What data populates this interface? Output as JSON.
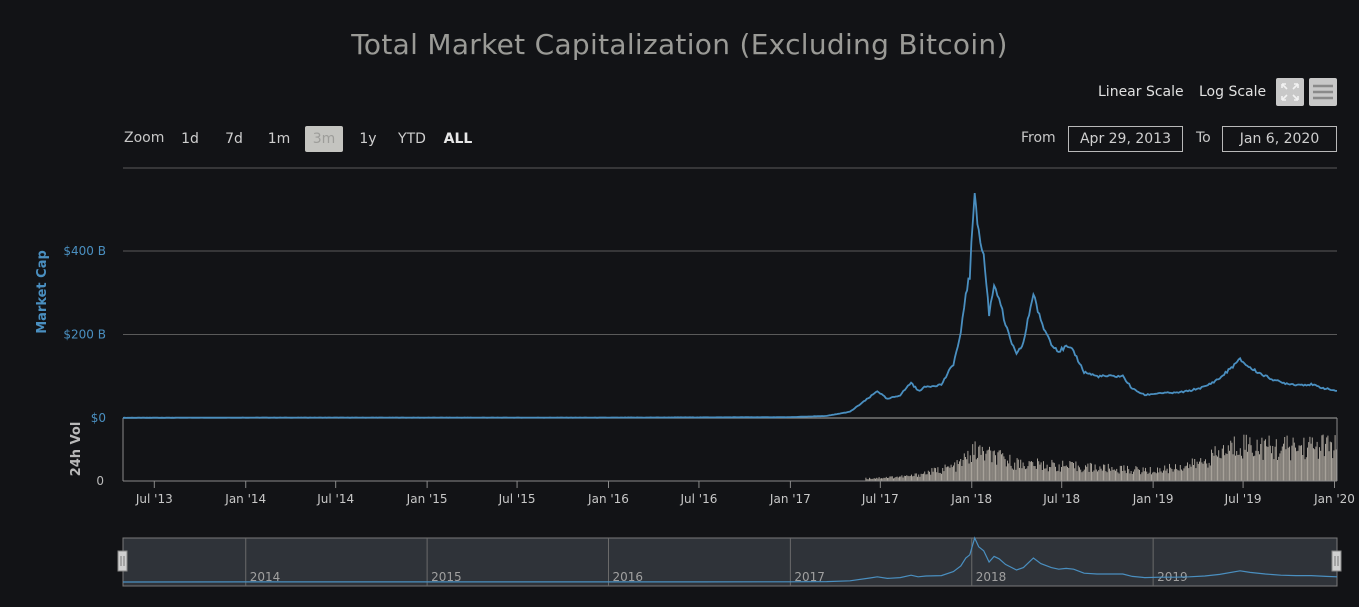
{
  "chart_data": {
    "type": "line",
    "title": "Total Market Capitalization (Excluding Bitcoin)",
    "ylabel": "Market Cap",
    "volume_label": "24h Vol",
    "ylim": [
      0,
      600
    ],
    "y_ticks": [
      {
        "value": 0,
        "label": "$0"
      },
      {
        "value": 200,
        "label": "$200 B"
      },
      {
        "value": 400,
        "label": "$400 B"
      }
    ],
    "volume_tick": "0",
    "x_range": [
      "2013-04-29",
      "2020-01-06"
    ],
    "x_ticks": [
      {
        "date": "2013-07-01",
        "label": "Jul '13"
      },
      {
        "date": "2014-01-01",
        "label": "Jan '14"
      },
      {
        "date": "2014-07-01",
        "label": "Jul '14"
      },
      {
        "date": "2015-01-01",
        "label": "Jan '15"
      },
      {
        "date": "2015-07-01",
        "label": "Jul '15"
      },
      {
        "date": "2016-01-01",
        "label": "Jan '16"
      },
      {
        "date": "2016-07-01",
        "label": "Jul '16"
      },
      {
        "date": "2017-01-01",
        "label": "Jan '17"
      },
      {
        "date": "2017-07-01",
        "label": "Jul '17"
      },
      {
        "date": "2018-01-01",
        "label": "Jan '18"
      },
      {
        "date": "2018-07-01",
        "label": "Jul '18"
      },
      {
        "date": "2019-01-01",
        "label": "Jan '19"
      },
      {
        "date": "2019-07-01",
        "label": "Jul '19"
      },
      {
        "date": "2020-01-01",
        "label": "Jan '20"
      }
    ],
    "series": [
      {
        "name": "Market Cap",
        "color": "#4a8fc0",
        "points": [
          [
            "2013-04-29",
            0.5
          ],
          [
            "2014-01-01",
            1.0
          ],
          [
            "2015-01-01",
            1.0
          ],
          [
            "2016-01-01",
            1.0
          ],
          [
            "2016-07-01",
            1.5
          ],
          [
            "2017-01-01",
            2.0
          ],
          [
            "2017-03-15",
            5
          ],
          [
            "2017-05-01",
            15
          ],
          [
            "2017-06-10",
            50
          ],
          [
            "2017-06-25",
            65
          ],
          [
            "2017-07-15",
            45
          ],
          [
            "2017-08-10",
            55
          ],
          [
            "2017-09-01",
            85
          ],
          [
            "2017-09-15",
            65
          ],
          [
            "2017-10-01",
            75
          ],
          [
            "2017-11-01",
            80
          ],
          [
            "2017-11-25",
            130
          ],
          [
            "2017-12-10",
            200
          ],
          [
            "2017-12-20",
            300
          ],
          [
            "2017-12-28",
            340
          ],
          [
            "2018-01-07",
            550
          ],
          [
            "2018-01-15",
            440
          ],
          [
            "2018-01-25",
            390
          ],
          [
            "2018-02-05",
            250
          ],
          [
            "2018-02-15",
            320
          ],
          [
            "2018-02-25",
            290
          ],
          [
            "2018-03-10",
            220
          ],
          [
            "2018-04-01",
            150
          ],
          [
            "2018-04-15",
            180
          ],
          [
            "2018-05-05",
            300
          ],
          [
            "2018-05-20",
            230
          ],
          [
            "2018-06-10",
            180
          ],
          [
            "2018-06-25",
            160
          ],
          [
            "2018-07-10",
            170
          ],
          [
            "2018-07-25",
            160
          ],
          [
            "2018-08-15",
            110
          ],
          [
            "2018-09-10",
            100
          ],
          [
            "2018-10-01",
            100
          ],
          [
            "2018-11-01",
            100
          ],
          [
            "2018-11-20",
            70
          ],
          [
            "2018-12-15",
            55
          ],
          [
            "2019-01-15",
            60
          ],
          [
            "2019-02-15",
            60
          ],
          [
            "2019-03-15",
            65
          ],
          [
            "2019-04-15",
            75
          ],
          [
            "2019-05-15",
            95
          ],
          [
            "2019-06-25",
            140
          ],
          [
            "2019-07-15",
            120
          ],
          [
            "2019-08-15",
            100
          ],
          [
            "2019-09-15",
            85
          ],
          [
            "2019-10-15",
            80
          ],
          [
            "2019-11-15",
            80
          ],
          [
            "2019-12-15",
            70
          ],
          [
            "2020-01-06",
            65
          ]
        ]
      },
      {
        "name": "24h Vol",
        "color": "#a8a29a",
        "points": [
          [
            "2017-06-01",
            0.05
          ],
          [
            "2017-09-01",
            0.1
          ],
          [
            "2017-12-01",
            0.3
          ],
          [
            "2018-01-07",
            0.6
          ],
          [
            "2018-04-01",
            0.35
          ],
          [
            "2018-07-01",
            0.3
          ],
          [
            "2018-10-01",
            0.25
          ],
          [
            "2019-01-01",
            0.2
          ],
          [
            "2019-04-01",
            0.35
          ],
          [
            "2019-06-25",
            0.75
          ],
          [
            "2019-09-01",
            0.65
          ],
          [
            "2019-12-01",
            0.7
          ],
          [
            "2020-01-06",
            0.7
          ]
        ]
      }
    ],
    "navigator_labels": [
      "2014",
      "2015",
      "2016",
      "2017",
      "2018",
      "2019"
    ]
  },
  "toolbar": {
    "linear_scale": "Linear Scale",
    "log_scale": "Log Scale",
    "fullscreen_icon": "fullscreen-icon",
    "menu_icon": "menu-icon"
  },
  "range_selector": {
    "zoom_label": "Zoom",
    "buttons": [
      "1d",
      "7d",
      "1m",
      "3m",
      "1y",
      "YTD",
      "ALL"
    ],
    "selected": "ALL",
    "from_label": "From",
    "from_value": "Apr 29, 2013",
    "to_label": "To",
    "to_value": "Jan 6, 2020"
  }
}
